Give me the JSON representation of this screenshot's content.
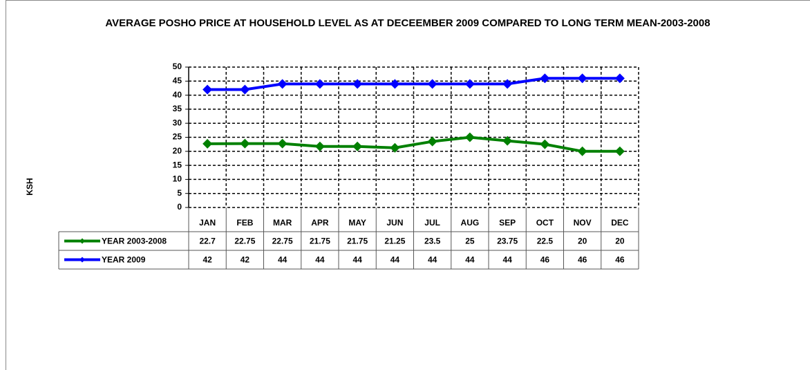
{
  "chart_data": {
    "type": "line",
    "title": "AVERAGE POSHO PRICE AT HOUSEHOLD LEVEL AS AT DECEEMBER 2009 COMPARED TO LONG TERM MEAN-2003-2008",
    "y_label": "KSH",
    "categories": [
      "JAN",
      "FEB",
      "MAR",
      "APR",
      "MAY",
      "JUN",
      "JUL",
      "AUG",
      "SEP",
      "OCT",
      "NOV",
      "DEC"
    ],
    "series": [
      {
        "name": "YEAR 2003-2008",
        "color": "#008000",
        "values": [
          22.7,
          22.75,
          22.75,
          21.75,
          21.75,
          21.25,
          23.5,
          25,
          23.75,
          22.5,
          20,
          20
        ]
      },
      {
        "name": "YEAR 2009",
        "color": "#0000ff",
        "values": [
          42,
          42,
          44,
          44,
          44,
          44,
          44,
          44,
          44,
          46,
          46,
          46
        ]
      }
    ],
    "ylim": [
      0,
      50
    ],
    "yticks": [
      0,
      5,
      10,
      15,
      20,
      25,
      30,
      35,
      40,
      45,
      50
    ],
    "grid": true,
    "data_table": true
  }
}
